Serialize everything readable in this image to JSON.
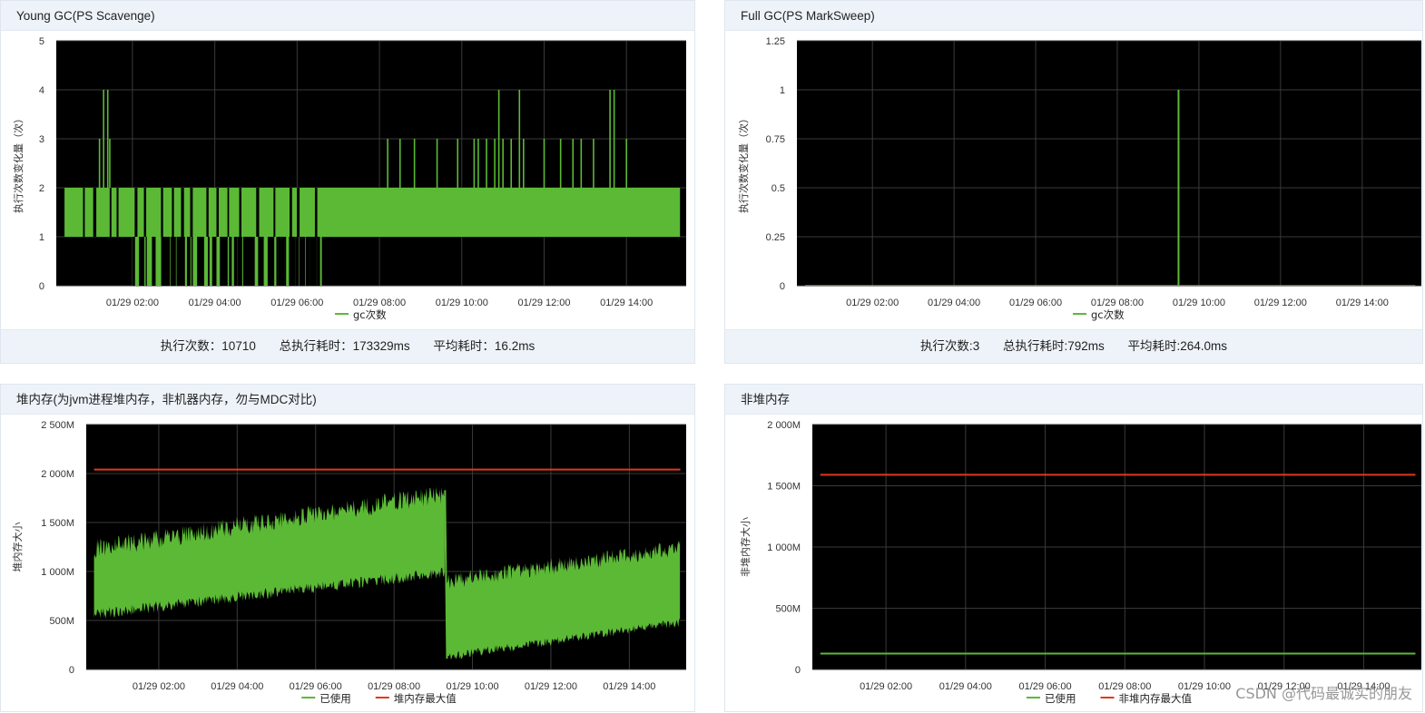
{
  "panels": {
    "young_gc": {
      "title": "Young GC(PS Scavenge)",
      "footer": {
        "count": "执行次数：10710",
        "total": "总执行耗时：173329ms",
        "avg": "平均耗时：16.2ms"
      }
    },
    "full_gc": {
      "title": "Full GC(PS MarkSweep)",
      "footer": {
        "count": "执行次数:3",
        "total": "总执行耗时:792ms",
        "avg": "平均耗时:264.0ms"
      }
    },
    "heap": {
      "title": "堆内存(为jvm进程堆内存，非机器内存，勿与MDC对比)"
    },
    "nonheap": {
      "title": "非堆内存"
    }
  },
  "watermark": "CSDN @代码最诚实的朋友",
  "colors": {
    "used": "#5cb936",
    "max": "#e0381c",
    "plot_bg": "#000000",
    "grid": "#3a3a3a"
  },
  "chart_data": [
    {
      "id": "young",
      "type": "line",
      "ylabel": "执行次数变化量（次）",
      "ylim": [
        0,
        5
      ],
      "yticks": [
        "0",
        "1",
        "2",
        "3",
        "4",
        "5"
      ],
      "xticks": [
        "01/29 02:00",
        "01/29 04:00",
        "01/29 06:00",
        "01/29 08:00",
        "01/29 10:00",
        "01/29 12:00",
        "01/29 14:00"
      ],
      "xrange_hours": [
        0.15,
        15.45
      ],
      "series": [
        {
          "name": "gc次数",
          "color": "#5cb936",
          "description": "oscillates mostly between 1 and 2, dips to 0 between ~02:00 and ~06:30, spikes to 3-4"
        }
      ]
    },
    {
      "id": "full",
      "type": "line",
      "ylabel": "执行次数变化量（次）",
      "ylim": [
        0,
        1.25
      ],
      "yticks": [
        "0",
        "0.25",
        "0.5",
        "0.75",
        "1",
        "1.25"
      ],
      "xticks": [
        "01/29 02:00",
        "01/29 04:00",
        "01/29 06:00",
        "01/29 08:00",
        "01/29 10:00",
        "01/29 12:00",
        "01/29 14:00"
      ],
      "xrange_hours": [
        0.15,
        15.45
      ],
      "series": [
        {
          "name": "gc次数",
          "color": "#5cb936",
          "spike_at_hour": 9.5,
          "spike_value": 1
        }
      ]
    },
    {
      "id": "heap",
      "type": "line",
      "ylabel": "堆内存大小",
      "ylim": [
        0,
        2500
      ],
      "yticks": [
        "0",
        "500M",
        "1 000M",
        "1 500M",
        "2 000M",
        "2 500M"
      ],
      "xticks": [
        "01/29 02:00",
        "01/29 04:00",
        "01/29 06:00",
        "01/29 08:00",
        "01/29 10:00",
        "01/29 12:00",
        "01/29 14:00"
      ],
      "xrange_hours": [
        0.15,
        15.45
      ],
      "series": [
        {
          "name": "已使用",
          "color": "#5cb936"
        },
        {
          "name": "堆内存最大值",
          "color": "#e0381c",
          "value": 2040
        }
      ]
    },
    {
      "id": "nonheap",
      "type": "line",
      "ylabel": "非堆内存大小",
      "ylim": [
        0,
        2000
      ],
      "yticks": [
        "0",
        "500M",
        "1 000M",
        "1 500M",
        "2 000M"
      ],
      "xticks": [
        "01/29 02:00",
        "01/29 04:00",
        "01/29 06:00",
        "01/29 08:00",
        "01/29 10:00",
        "01/29 12:00",
        "01/29 14:00"
      ],
      "xrange_hours": [
        0.15,
        15.45
      ],
      "series": [
        {
          "name": "已使用",
          "color": "#5cb936",
          "value": 130
        },
        {
          "name": "非堆内存最大值",
          "color": "#e0381c",
          "value": 1590
        }
      ]
    }
  ]
}
